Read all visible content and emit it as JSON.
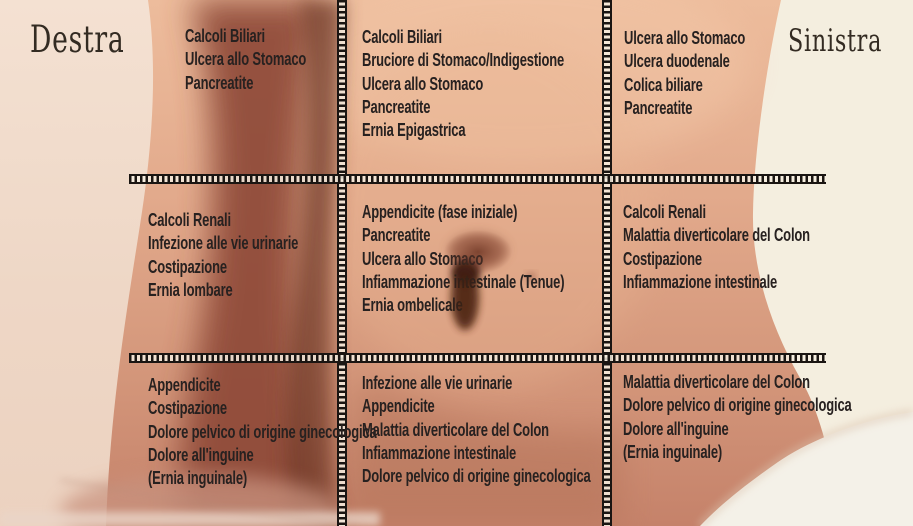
{
  "header": {
    "left_label": "Destra",
    "right_label": "Sinistra"
  },
  "grid": {
    "cells": [
      {
        "id": "top-left",
        "items": [
          "Calcoli Biliari",
          "Ulcera allo Stomaco",
          "Pancreatite"
        ]
      },
      {
        "id": "top-center",
        "items": [
          "Calcoli Biliari",
          "Bruciore di Stomaco/Indigestione",
          "Ulcera allo Stomaco",
          "Pancreatite",
          "Ernia Epigastrica"
        ]
      },
      {
        "id": "top-right",
        "items": [
          "Ulcera allo Stomaco",
          "Ulcera duodenale",
          "Colica biliare",
          "Pancreatite"
        ]
      },
      {
        "id": "middle-left",
        "items": [
          "Calcoli Renali",
          "Infezione alle vie urinarie",
          "Costipazione",
          "Ernia lombare"
        ]
      },
      {
        "id": "middle-center",
        "items": [
          "Appendicite (fase iniziale)",
          "Pancreatite",
          "Ulcera allo Stomaco",
          "Infiammazione intestinale (Tenue)",
          "Ernia ombelicale"
        ]
      },
      {
        "id": "middle-right",
        "items": [
          "Calcoli Renali",
          "Malattia diverticolare del Colon",
          "Costipazione",
          "Infiammazione intestinale"
        ]
      },
      {
        "id": "bottom-left",
        "items": [
          "Appendicite",
          "Costipazione",
          "Dolore pelvico di origine ginecologica",
          "Dolore all'inguine",
          "(Ernia inguinale)"
        ]
      },
      {
        "id": "bottom-center",
        "items": [
          "Infezione alle vie urinarie",
          "Appendicite",
          "Malattia diverticolare del Colon",
          "Infiammazione intestinale",
          "Dolore pelvico di origine ginecologica"
        ]
      },
      {
        "id": "bottom-right",
        "items": [
          "Malattia diverticolare del Colon",
          "Dolore pelvico di origine ginecologica",
          "Dolore all'inguine",
          "(Ernia inguinale)"
        ]
      }
    ]
  },
  "colors": {
    "text": "#272120",
    "grid_line": "#1a1512",
    "background_cream": "#f4eedf",
    "skin_light": "#eebf9f",
    "skin_shadow": "#8e4a37",
    "underwear_white": "#f4f1e8"
  }
}
